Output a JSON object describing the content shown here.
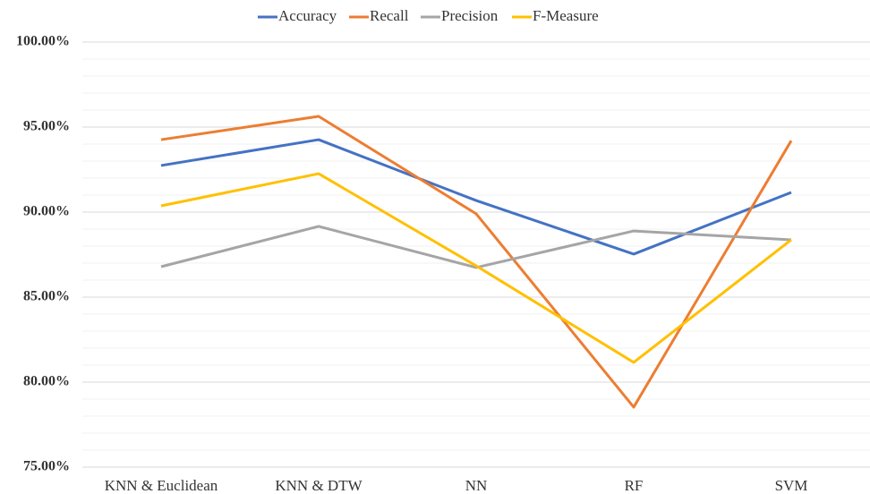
{
  "chart_data": {
    "type": "line",
    "categories": [
      "KNN & Euclidean",
      "KNN & DTW",
      "NN",
      "RF",
      "SVM"
    ],
    "series": [
      {
        "name": "Accuracy",
        "color": "#4472c4",
        "values": [
          92.74,
          94.26,
          90.68,
          87.53,
          91.16
        ]
      },
      {
        "name": "Recall",
        "color": "#ed7d31",
        "values": [
          94.26,
          95.63,
          89.9,
          78.53,
          94.2
        ]
      },
      {
        "name": "Precision",
        "color": "#a5a5a5",
        "values": [
          86.79,
          89.16,
          86.74,
          88.89,
          88.37
        ]
      },
      {
        "name": "F-Measure",
        "color": "#ffc000",
        "values": [
          90.37,
          92.26,
          86.84,
          81.16,
          88.37
        ]
      }
    ],
    "ylim": [
      75,
      100
    ],
    "yticks": [
      {
        "value": 75,
        "label": "75.00%"
      },
      {
        "value": 80,
        "label": "80.00%"
      },
      {
        "value": 85,
        "label": "85.00%"
      },
      {
        "value": 90,
        "label": "90.00%"
      },
      {
        "value": 95,
        "label": "95.00%"
      },
      {
        "value": 100,
        "label": "100.00%"
      }
    ],
    "minor_yticks": [
      76,
      77,
      78,
      79,
      81,
      82,
      83,
      84,
      86,
      87,
      88,
      89,
      91,
      92,
      93,
      94,
      96,
      97,
      98,
      99
    ],
    "grid": true,
    "legend": "top"
  }
}
